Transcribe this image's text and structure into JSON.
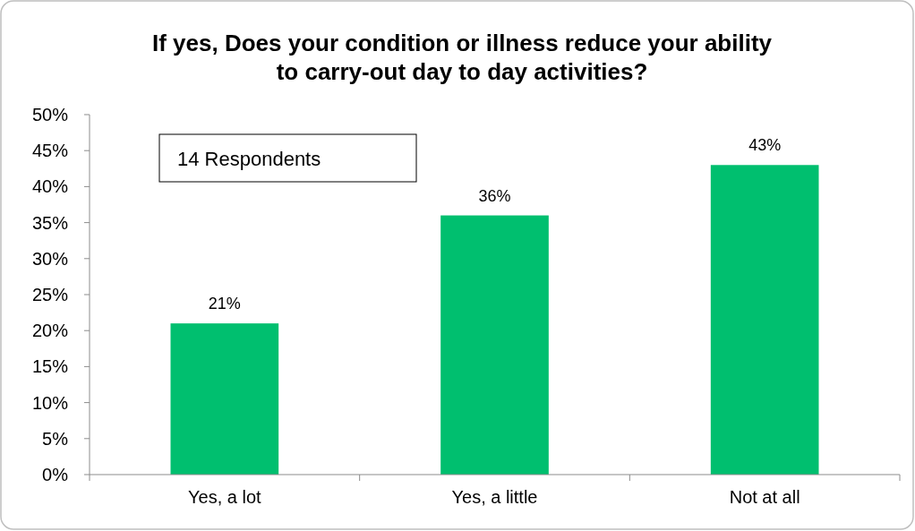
{
  "chart_data": {
    "type": "bar",
    "title": "If yes, Does your condition or illness reduce your ability to carry-out day to day activities?",
    "categories": [
      "Yes, a lot",
      "Yes, a little",
      "Not at all"
    ],
    "values": [
      21,
      36,
      43
    ],
    "value_labels": [
      "21%",
      "36%",
      "43%"
    ],
    "color": "#00bf6f",
    "ylim": [
      0,
      50
    ],
    "yticks": [
      {
        "value": 0,
        "label": "0%"
      },
      {
        "value": 5,
        "label": "5%"
      },
      {
        "value": 10,
        "label": "10%"
      },
      {
        "value": 15,
        "label": "15%"
      },
      {
        "value": 20,
        "label": "20%"
      },
      {
        "value": 25,
        "label": "25%"
      },
      {
        "value": 30,
        "label": "30%"
      },
      {
        "value": 35,
        "label": "35%"
      },
      {
        "value": 40,
        "label": "40%"
      },
      {
        "value": 45,
        "label": "45%"
      },
      {
        "value": 50,
        "label": "50%"
      }
    ],
    "annotations": [
      "14 Respondents"
    ]
  }
}
